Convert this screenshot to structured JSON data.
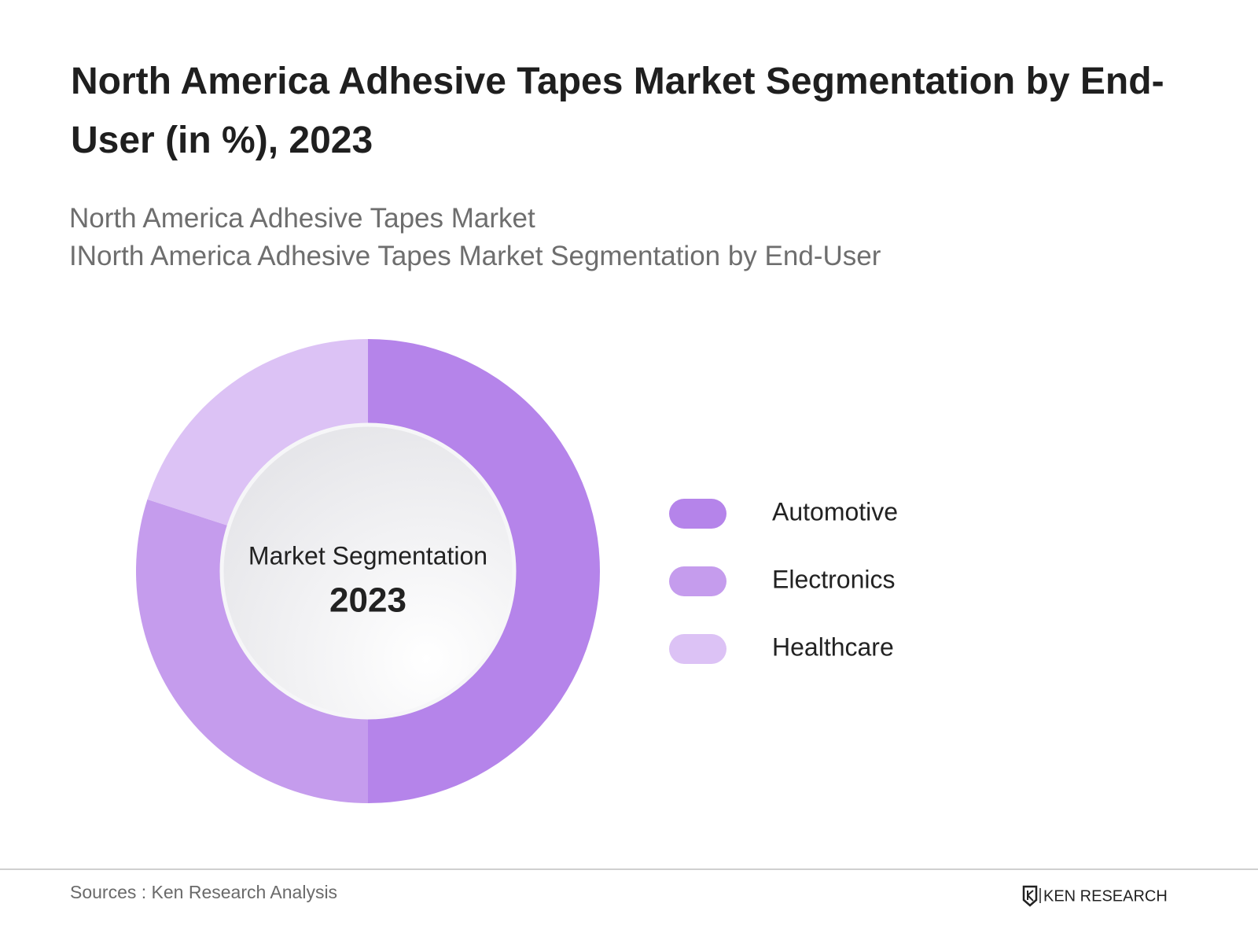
{
  "header": {
    "title": "North America Adhesive Tapes Market Segmentation by End-User (in %), 2023",
    "subtitle_lines": [
      "North America Adhesive Tapes Market",
      "INorth America Adhesive Tapes Market Segmentation by End-User"
    ]
  },
  "chart_data": {
    "type": "donut",
    "center_label": "Market Segmentation",
    "center_value": "2023",
    "categories": [
      "Automotive",
      "Electronics",
      "Healthcare"
    ],
    "values": [
      50,
      30,
      20
    ],
    "colors": [
      "#b584ea",
      "#c59ced",
      "#dcc2f5"
    ]
  },
  "footer": {
    "source": "Sources : Ken Research Analysis",
    "brand": "KEN RESEARCH"
  }
}
